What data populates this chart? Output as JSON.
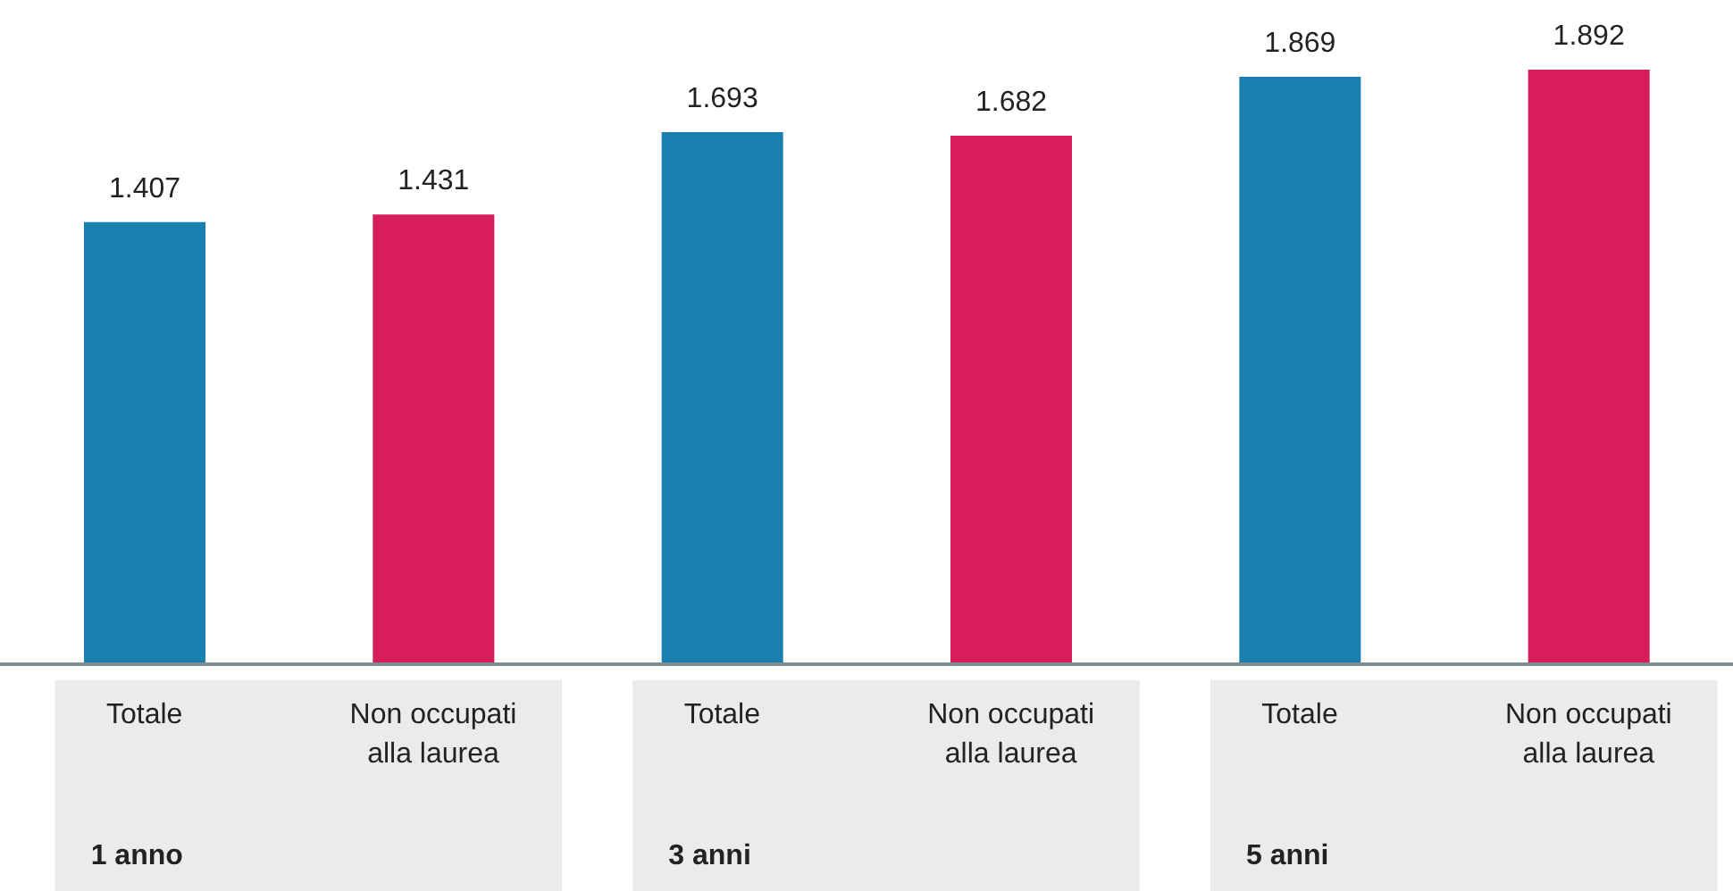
{
  "chart_data": {
    "type": "bar",
    "categories": [
      "Totale",
      "Non occupati alla laurea",
      "Totale",
      "Non occupati alla laurea",
      "Totale",
      "Non occupati alla laurea"
    ],
    "values": [
      1407,
      1431,
      1693,
      1682,
      1869,
      1892
    ],
    "value_labels": [
      "1.407",
      "1.431",
      "1.693",
      "1.682",
      "1.869",
      "1.892"
    ],
    "colors": [
      "#1a80b0",
      "#d81e5a",
      "#1a80b0",
      "#d81e5a",
      "#1a80b0",
      "#d81e5a"
    ],
    "annotations": [
      "1 anno",
      "3 anni",
      "5 anni"
    ],
    "legend": false,
    "grid": false
  }
}
